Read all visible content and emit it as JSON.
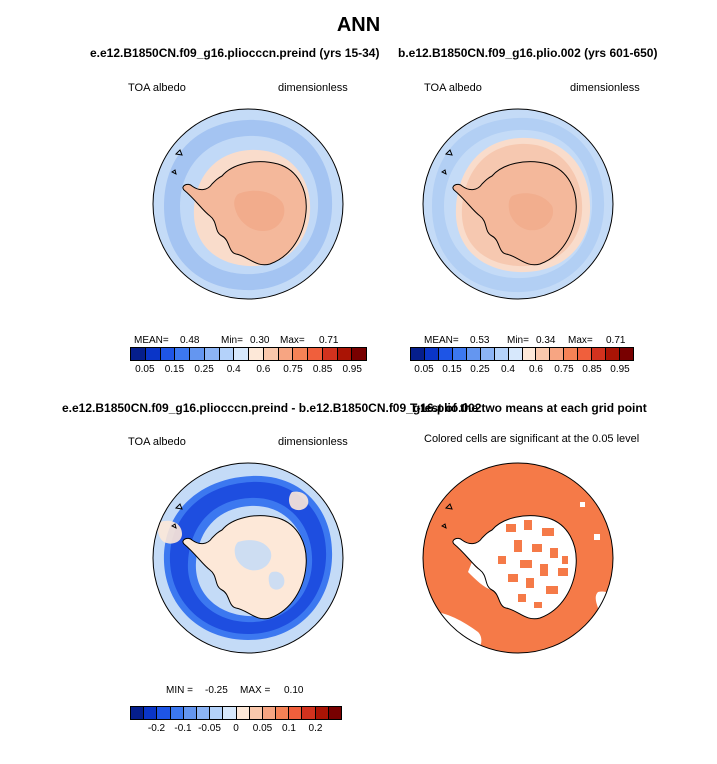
{
  "figure": {
    "title": "ANN"
  },
  "panels": [
    {
      "title": "e.e12.B1850CN.f09_g16.pliocccn.preind (yrs 15-34)",
      "variable": "TOA albedo",
      "units": "dimensionless",
      "stats": {
        "mean_label": "MEAN=",
        "mean": "0.48",
        "min_label": "Min=",
        "min": "0.30",
        "max_label": "Max=",
        "max": "0.71"
      }
    },
    {
      "title": "b.e12.B1850CN.f09_g16.plio.002 (yrs 601-650)",
      "variable": "TOA albedo",
      "units": "dimensionless",
      "stats": {
        "mean_label": "MEAN=",
        "mean": "0.53",
        "min_label": "Min=",
        "min": "0.34",
        "max_label": "Max=",
        "max": "0.71"
      }
    },
    {
      "title": "e.e12.B1850CN.f09_g16.pliocccn.preind - b.e12.B1850CN.f09_g16.plio.002",
      "variable": "TOA albedo",
      "units": "dimensionless",
      "stats": {
        "min_label": "MIN =",
        "min": "-0.25",
        "max_label": "MAX =",
        "max": "0.10"
      }
    },
    {
      "title": "T-test of the two means at each grid point",
      "subtitle": "Colored cells are significant at the 0.05 level"
    }
  ],
  "colorbars": {
    "absolute": {
      "colors": [
        "#051e8c",
        "#0a35c8",
        "#1e55e6",
        "#3c78f0",
        "#6496f0",
        "#8cb4f5",
        "#b4d2fa",
        "#d7e8fc",
        "#fde8d8",
        "#fac8ac",
        "#f7a582",
        "#f58256",
        "#f05f3c",
        "#d2321e",
        "#aa1405",
        "#780000"
      ],
      "tick_labels": [
        "0.05",
        "0.15",
        "0.25",
        "0.4",
        "0.6",
        "0.75",
        "0.85",
        "0.95"
      ]
    },
    "difference": {
      "colors": [
        "#051e8c",
        "#0a35c8",
        "#1e55e6",
        "#3c78f0",
        "#6496f0",
        "#8cb4f5",
        "#b4d2fa",
        "#d7e8fc",
        "#fde8d8",
        "#fac8ac",
        "#f7a582",
        "#f58256",
        "#f05f3c",
        "#d2321e",
        "#aa1405",
        "#780000"
      ],
      "tick_labels": [
        "-0.2",
        "-0.1",
        "-0.05",
        "0",
        "0.05",
        "0.1",
        "0.2"
      ]
    }
  },
  "map_colors": {
    "ocean_far": "#c4dbf7",
    "ocean_mid": "#a4c4f2",
    "ice_edge": "#f9dccb",
    "land": "#f4b89b",
    "land_dark": "#f0a382",
    "coast": "#000000",
    "diff_deep": "#1e4ee0",
    "diff_mid": "#3c78f0",
    "diff_light": "#c4dbf7",
    "diff_pos": "#fde8d8",
    "sig": "#f57a48",
    "nonsig": "#ffffff"
  }
}
